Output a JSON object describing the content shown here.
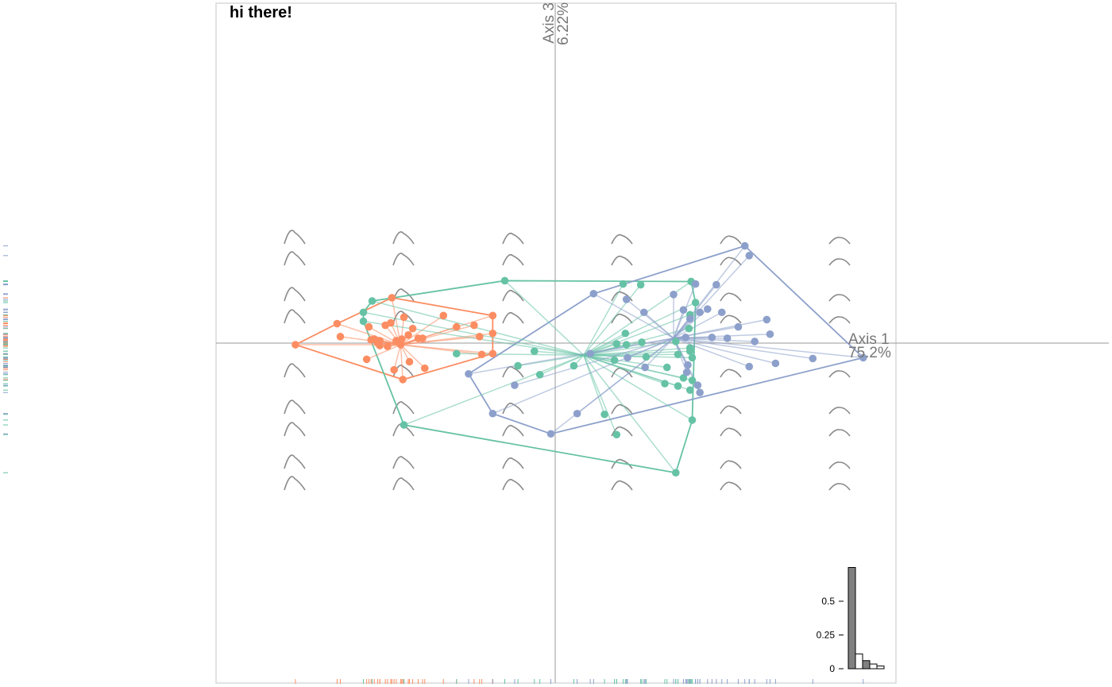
{
  "title": "hi there!",
  "chart_data": {
    "type": "scatter",
    "axes": [
      {
        "name": "Axis 1",
        "inertia": "75.2%",
        "orientation": "horizontal"
      },
      {
        "name": "Axis 3",
        "inertia": "6.22%",
        "orientation": "vertical"
      }
    ],
    "xlim": [
      -3.2,
      3.0
    ],
    "ylim": [
      -4.2,
      4.2
    ],
    "grid": false,
    "groups": [
      {
        "color": "#FC8D62",
        "centroid": [
          -1.41,
          -0.02
        ],
        "points": [
          [
            -2.37,
            -0.02
          ],
          [
            -1.99,
            0.24
          ],
          [
            -1.68,
            0.04
          ],
          [
            -1.96,
            0.08
          ],
          [
            -1.7,
            0.2
          ],
          [
            -1.55,
            0.22
          ],
          [
            -1.49,
            0.56
          ],
          [
            -1.38,
            0.32
          ],
          [
            -1.34,
            0.1
          ],
          [
            -1.4,
            0.05
          ],
          [
            -1.45,
            0.03
          ],
          [
            -1.6,
            -0.03
          ],
          [
            -1.53,
            -0.04
          ],
          [
            -1.5,
            0.25
          ],
          [
            -1.3,
            0.18
          ],
          [
            -1.21,
            0.06
          ],
          [
            -1.25,
            0.06
          ],
          [
            -1.33,
            -0.23
          ],
          [
            -1.47,
            -0.33
          ],
          [
            -1.39,
            -0.45
          ],
          [
            -1.19,
            -0.31
          ],
          [
            -1.02,
            0.34
          ],
          [
            -0.9,
            0.2
          ],
          [
            -0.74,
            0.22
          ],
          [
            -0.69,
            0.08
          ],
          [
            -0.57,
            0.34
          ],
          [
            -0.57,
            0.12
          ],
          [
            -0.57,
            -0.13
          ],
          [
            -0.67,
            -0.14
          ],
          [
            -1.72,
            -0.2
          ],
          [
            -1.65,
            0.05
          ],
          [
            -1.6,
            0.03
          ],
          [
            -1.62,
            0.0
          ],
          [
            -1.41,
            -0.02
          ]
        ]
      },
      {
        "color": "#66C2A5",
        "centroid": [
          0.26,
          -0.15
        ],
        "points": [
          [
            -1.67,
            0.52
          ],
          [
            -1.75,
            0.38
          ],
          [
            -1.75,
            0.27
          ],
          [
            -1.38,
            -1.01
          ],
          [
            -0.46,
            0.77
          ],
          [
            -0.9,
            -0.13
          ],
          [
            -0.19,
            -0.1
          ],
          [
            -0.34,
            -0.28
          ],
          [
            -0.14,
            -0.39
          ],
          [
            0.17,
            -0.28
          ],
          [
            0.45,
            -0.88
          ],
          [
            0.54,
            -0.21
          ],
          [
            0.56,
            -0.01
          ],
          [
            0.62,
            0.73
          ],
          [
            0.78,
            0.72
          ],
          [
            0.64,
            0.12
          ],
          [
            0.65,
            -0.02
          ],
          [
            0.83,
            -0.17
          ],
          [
            0.79,
            0.01
          ],
          [
            1.1,
            0.02
          ],
          [
            1.12,
            -0.14
          ],
          [
            1.24,
            0.76
          ],
          [
            1.28,
            0.5
          ],
          [
            1.23,
            0.35
          ],
          [
            1.22,
            0.18
          ],
          [
            1.23,
            -0.06
          ],
          [
            1.23,
            -0.1
          ],
          [
            1.25,
            -0.18
          ],
          [
            1.17,
            -0.43
          ],
          [
            1.12,
            -0.53
          ],
          [
            1.23,
            -0.58
          ],
          [
            1.25,
            -0.46
          ],
          [
            1.25,
            -0.95
          ],
          [
            0.56,
            -1.13
          ],
          [
            1.02,
            -0.3
          ],
          [
            1.0,
            -0.5
          ],
          [
            1.1,
            -1.6
          ]
        ]
      },
      {
        "color": "#8DA0CB",
        "centroid": [
          1.08,
          0.06
        ],
        "points": [
          [
            -0.79,
            -0.38
          ],
          [
            -0.57,
            -0.87
          ],
          [
            -0.37,
            -0.52
          ],
          [
            -0.04,
            -1.12
          ],
          [
            0.2,
            -0.87
          ],
          [
            0.32,
            -0.13
          ],
          [
            0.35,
            0.61
          ],
          [
            0.81,
            0.38
          ],
          [
            0.65,
            0.54
          ],
          [
            0.66,
            -0.18
          ],
          [
            0.82,
            -0.3
          ],
          [
            1.08,
            0.6
          ],
          [
            1.17,
            0.41
          ],
          [
            1.23,
            0.3
          ],
          [
            1.28,
            0.73
          ],
          [
            1.32,
            0.38
          ],
          [
            1.39,
            0.42
          ],
          [
            1.47,
            0.72
          ],
          [
            1.52,
            0.38
          ],
          [
            1.2,
            -0.36
          ],
          [
            1.19,
            0.07
          ],
          [
            1.21,
            -0.27
          ],
          [
            1.3,
            -0.52
          ],
          [
            1.32,
            -0.61
          ],
          [
            1.43,
            0.07
          ],
          [
            1.57,
            0.06
          ],
          [
            1.67,
            0.2
          ],
          [
            1.73,
            1.2
          ],
          [
            1.77,
            1.08
          ],
          [
            1.82,
            0.02
          ],
          [
            1.77,
            -0.29
          ],
          [
            1.93,
            0.29
          ],
          [
            1.96,
            0.11
          ],
          [
            2.01,
            -0.25
          ],
          [
            2.35,
            -0.19
          ],
          [
            2.81,
            -0.18
          ]
        ]
      }
    ],
    "eigenvalues_inset": {
      "yticks": [
        "0",
        "0.25",
        "0.5"
      ],
      "bars": [
        0.75,
        0.11,
        0.06,
        0.035,
        0.02
      ],
      "highlighted": [
        0,
        2
      ]
    }
  }
}
